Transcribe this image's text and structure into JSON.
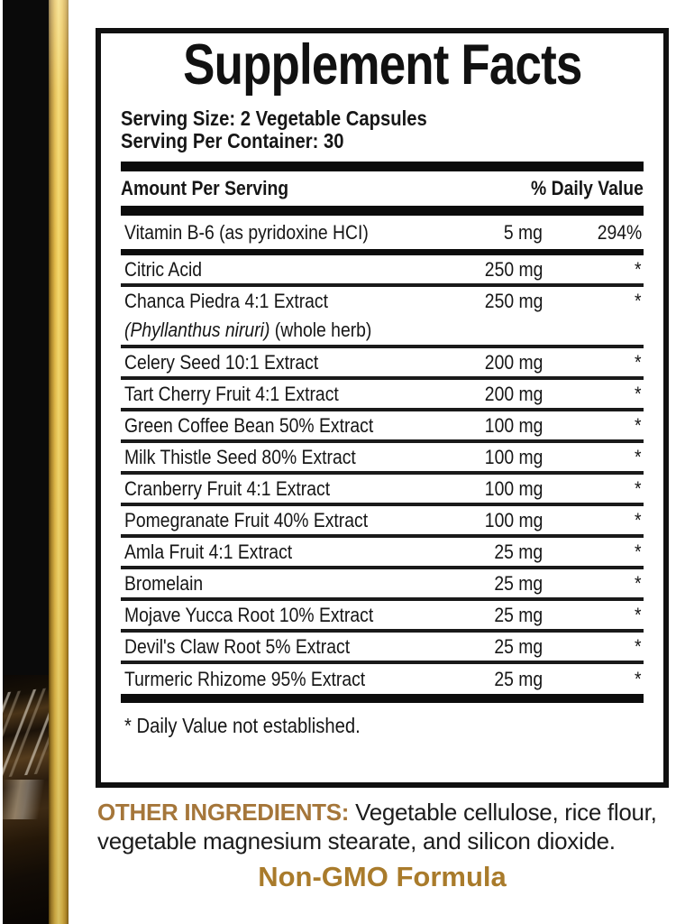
{
  "colors": {
    "ink": "#161616",
    "panel_border": "#101010",
    "other_ingredients_gold": "#a5763a",
    "non_gmo_gold": "#a97b2b",
    "stripe_gold": "#e9c24f",
    "package_black": "#0a0a0a"
  },
  "panel": {
    "title": "Supplement Facts",
    "serving_size": "Serving Size: 2 Vegetable Capsules",
    "servings_per_container": "Serving Per Container: 30",
    "columns": {
      "amount_header": "Amount Per Serving",
      "dv_header": "% Daily Value"
    },
    "rows": [
      {
        "name": "Vitamin B-6 (as pyridoxine HCI)",
        "amount": "5 mg",
        "dv": "294%"
      },
      {
        "name": "Citric Acid",
        "amount": "250 mg",
        "dv": "*"
      },
      {
        "name": "Chanca Piedra 4:1 Extract",
        "sub_italic": "(Phyllanthus niruri)",
        "sub_plain": " (whole herb)",
        "amount": "250 mg",
        "dv": "*"
      },
      {
        "name": "Celery Seed 10:1 Extract",
        "amount": "200 mg",
        "dv": "*"
      },
      {
        "name": "Tart Cherry Fruit 4:1 Extract",
        "amount": "200 mg",
        "dv": "*"
      },
      {
        "name": "Green Coffee Bean 50% Extract",
        "amount": "100 mg",
        "dv": "*"
      },
      {
        "name": "Milk Thistle Seed 80% Extract",
        "amount": "100 mg",
        "dv": "*"
      },
      {
        "name": "Cranberry Fruit 4:1 Extract",
        "amount": "100 mg",
        "dv": "*"
      },
      {
        "name": "Pomegranate Fruit 40% Extract",
        "amount": "100 mg",
        "dv": "*"
      },
      {
        "name": "Amla Fruit 4:1 Extract",
        "amount": "25 mg",
        "dv": "*"
      },
      {
        "name": "Bromelain",
        "amount": "25 mg",
        "dv": "*"
      },
      {
        "name": "Mojave Yucca Root 10% Extract",
        "amount": "25 mg",
        "dv": "*"
      },
      {
        "name": "Devil's Claw Root 5% Extract",
        "amount": "25 mg",
        "dv": "*"
      },
      {
        "name": "Turmeric Rhizome 95% Extract",
        "amount": "25 mg",
        "dv": "*"
      }
    ],
    "footnote": "* Daily Value not established."
  },
  "other_ingredients": {
    "label": "OTHER INGREDIENTS:",
    "line1": " Vegetable cellulose, rice flour,",
    "line2": "vegetable magnesium stearate, and silicon dioxide."
  },
  "non_gmo": "Non-GMO Formula"
}
